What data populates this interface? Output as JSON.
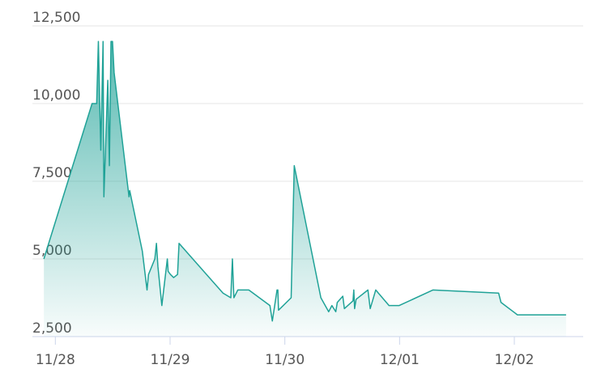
{
  "chart_data": {
    "type": "area",
    "x": [
      -0.1,
      0.32,
      0.36,
      0.375,
      0.396,
      0.416,
      0.423,
      0.457,
      0.471,
      0.485,
      0.498,
      0.512,
      0.642,
      0.648,
      0.758,
      0.799,
      0.812,
      0.867,
      0.881,
      0.894,
      0.928,
      0.976,
      0.983,
      1.003,
      1.031,
      1.065,
      1.078,
      1.461,
      1.529,
      1.543,
      1.556,
      1.59,
      1.686,
      1.87,
      1.891,
      1.932,
      1.939,
      1.945,
      2.055,
      2.082,
      2.314,
      2.382,
      2.41,
      2.444,
      2.457,
      2.505,
      2.519,
      2.594,
      2.601,
      2.608,
      2.621,
      2.724,
      2.744,
      2.792,
      2.908,
      2.997,
      3.29,
      3.863,
      3.884,
      4.027,
      4.451
    ],
    "values": [
      5000,
      10000,
      10000,
      12000,
      8500,
      12000,
      7000,
      10750,
      8000,
      12000,
      12000,
      11000,
      7000,
      7200,
      5250,
      4000,
      4500,
      5000,
      5500,
      4750,
      3500,
      5000,
      4600,
      4500,
      4400,
      4500,
      5500,
      3900,
      3750,
      5000,
      3750,
      4000,
      4000,
      3500,
      3000,
      4000,
      4000,
      3350,
      3750,
      8000,
      3750,
      3300,
      3500,
      3300,
      3600,
      3800,
      3400,
      3650,
      4000,
      3400,
      3700,
      4000,
      3400,
      4000,
      3500,
      3500,
      4000,
      3900,
      3600,
      3200,
      3200
    ],
    "color": "#1fa297",
    "xlim": [
      -0.2,
      4.6
    ],
    "xticks": [
      {
        "value": 0,
        "label": "11/28"
      },
      {
        "value": 1,
        "label": "11/29"
      },
      {
        "value": 2,
        "label": "11/30"
      },
      {
        "value": 3,
        "label": "12/01"
      },
      {
        "value": 4,
        "label": "12/02"
      }
    ],
    "ylim": [
      2500,
      12500
    ],
    "yticks": [
      {
        "value": 2500,
        "label": "2,500"
      },
      {
        "value": 5000,
        "label": "5,000"
      },
      {
        "value": 7500,
        "label": "7,500"
      },
      {
        "value": 10000,
        "label": "10,000"
      },
      {
        "value": 12500,
        "label": "12,500"
      }
    ],
    "grid": true
  }
}
